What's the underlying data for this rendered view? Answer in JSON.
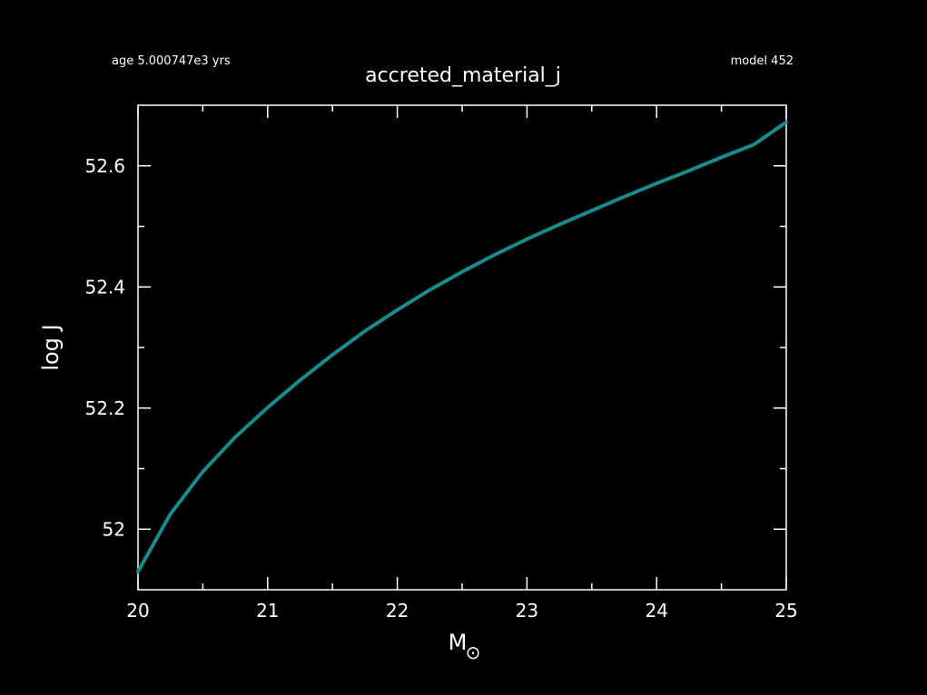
{
  "header": {
    "age_label": "age 5.000747e3 yrs",
    "model_label": "model 452"
  },
  "chart_data": {
    "type": "line",
    "title": "accreted_material_j",
    "xlabel": "M",
    "xlabel_symbol": "⊙",
    "ylabel": "log J",
    "xlim": [
      20,
      25
    ],
    "ylim": [
      51.9,
      52.7
    ],
    "x_major_ticks": [
      20,
      21,
      22,
      23,
      24,
      25
    ],
    "x_tick_labels": [
      "20",
      "21",
      "22",
      "23",
      "24",
      "25"
    ],
    "y_major_ticks": [
      52.0,
      52.2,
      52.4,
      52.6
    ],
    "y_tick_labels": [
      "52",
      "52.2",
      "52.4",
      "52.6"
    ],
    "y_minor_ticks": [
      52.1,
      52.3,
      52.5
    ],
    "grid": false,
    "colors": {
      "background": "#000000",
      "axes": "#ffffff",
      "line": "#1a8a8a"
    },
    "series": [
      {
        "x": [
          20.0,
          20.25,
          20.5,
          20.75,
          21.0,
          21.25,
          21.5,
          21.75,
          22.0,
          22.25,
          22.5,
          22.75,
          23.0,
          23.25,
          23.5,
          23.75,
          24.0,
          24.25,
          24.5,
          24.75,
          25.0
        ],
        "y": [
          51.93,
          52.025,
          52.095,
          52.152,
          52.201,
          52.246,
          52.288,
          52.327,
          52.362,
          52.395,
          52.425,
          52.453,
          52.479,
          52.503,
          52.526,
          52.549,
          52.571,
          52.592,
          52.614,
          52.635,
          52.672
        ]
      }
    ]
  }
}
